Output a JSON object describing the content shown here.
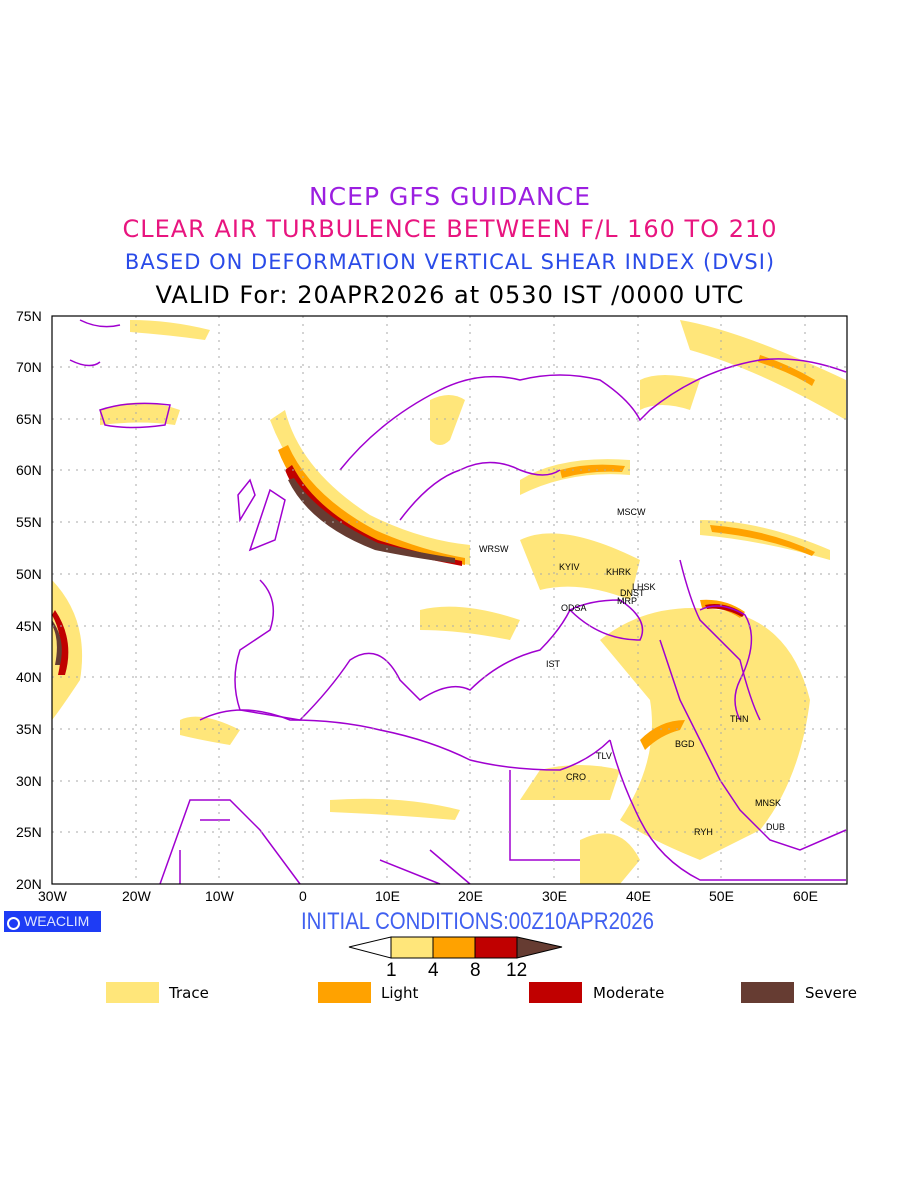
{
  "titles": {
    "line1": "NCEP GFS GUIDANCE",
    "line2": "CLEAR AIR TURBULENCE BETWEEN F/L 160 TO 210",
    "line3": "BASED ON DEFORMATION VERTICAL SHEAR INDEX (DVSI)",
    "line4": "VALID For: 20APR2026 at 0530 IST /0000 UTC"
  },
  "axes": {
    "lat_labels": [
      "75N",
      "70N",
      "65N",
      "60N",
      "55N",
      "50N",
      "45N",
      "40N",
      "35N",
      "30N",
      "25N",
      "20N"
    ],
    "lon_labels": [
      "30W",
      "20W",
      "10W",
      "0",
      "10E",
      "20E",
      "30E",
      "40E",
      "50E",
      "60E"
    ]
  },
  "cities": [
    {
      "name": "MSCW"
    },
    {
      "name": "WRSW"
    },
    {
      "name": "KYIV"
    },
    {
      "name": "KHRK"
    },
    {
      "name": "LHSK"
    },
    {
      "name": "DNST"
    },
    {
      "name": "MRP"
    },
    {
      "name": "ODSA"
    },
    {
      "name": "IST"
    },
    {
      "name": "THN"
    },
    {
      "name": "BGD"
    },
    {
      "name": "TLV"
    },
    {
      "name": "CRO"
    },
    {
      "name": "MNSK"
    },
    {
      "name": "DUB"
    },
    {
      "name": "RYH"
    }
  ],
  "logo": "WEACLIM",
  "initial_conditions": "INITIAL CONDITIONS:00Z10APR2026",
  "colorbar": {
    "ticks": [
      "1",
      "4",
      "8",
      "12"
    ],
    "colors": [
      "#ffe67a",
      "#ffa200",
      "#c00000",
      "#663c32"
    ]
  },
  "legend": [
    {
      "label": "Trace",
      "color": "#ffe67a"
    },
    {
      "label": "Light",
      "color": "#ffa200"
    },
    {
      "label": "Moderate",
      "color": "#c00000"
    },
    {
      "label": "Severe",
      "color": "#663c32"
    }
  ],
  "colors": {
    "coast": "#a000d0",
    "grid": "#aaaaaa"
  }
}
